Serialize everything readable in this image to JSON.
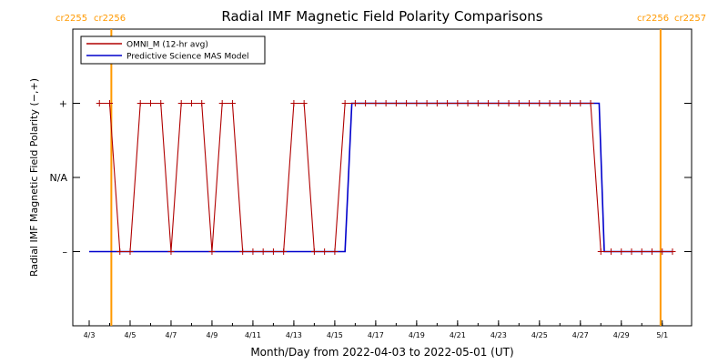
{
  "chart_data": {
    "type": "line",
    "title": "Radial IMF Magnetic Field Polarity Comparisons",
    "xlabel": "Month/Day from 2022-04-03 to 2022-05-01 (UT)",
    "ylabel": "Radial IMF Magnetic Field Polarity (−,+)",
    "x_unit": "date",
    "xlim": [
      "2022-04-03T00:00",
      "2022-05-01T12:00"
    ],
    "x_ticks": [
      {
        "date": "2022-04-03",
        "label": "4/3"
      },
      {
        "date": "2022-04-05",
        "label": "4/5"
      },
      {
        "date": "2022-04-07",
        "label": "4/7"
      },
      {
        "date": "2022-04-09",
        "label": "4/9"
      },
      {
        "date": "2022-04-11",
        "label": "4/11"
      },
      {
        "date": "2022-04-13",
        "label": "4/13"
      },
      {
        "date": "2022-04-15",
        "label": "4/15"
      },
      {
        "date": "2022-04-17",
        "label": "4/17"
      },
      {
        "date": "2022-04-19",
        "label": "4/19"
      },
      {
        "date": "2022-04-21",
        "label": "4/21"
      },
      {
        "date": "2022-04-23",
        "label": "4/23"
      },
      {
        "date": "2022-04-25",
        "label": "4/25"
      },
      {
        "date": "2022-04-27",
        "label": "4/27"
      },
      {
        "date": "2022-04-29",
        "label": "4/29"
      },
      {
        "date": "2022-05-01",
        "label": "5/1"
      }
    ],
    "ylim": [
      -2,
      2
    ],
    "y_ticks": [
      {
        "value": 1,
        "label": "+"
      },
      {
        "value": 0,
        "label": "N/A"
      },
      {
        "value": -1,
        "label": "–"
      }
    ],
    "grid": false,
    "legend_position": "top-left",
    "series": [
      {
        "name": "OMNI_M (12-hr avg)",
        "color": "#b00000",
        "marker": "+",
        "points": [
          [
            "2022-04-03T12:00",
            1
          ],
          [
            "2022-04-04T00:00",
            1
          ],
          [
            "2022-04-04T12:00",
            -1
          ],
          [
            "2022-04-05T00:00",
            -1
          ],
          [
            "2022-04-05T12:00",
            1
          ],
          [
            "2022-04-06T00:00",
            1
          ],
          [
            "2022-04-06T12:00",
            1
          ],
          [
            "2022-04-07T00:00",
            -1
          ],
          [
            "2022-04-07T12:00",
            1
          ],
          [
            "2022-04-08T00:00",
            1
          ],
          [
            "2022-04-08T12:00",
            1
          ],
          [
            "2022-04-09T00:00",
            -1
          ],
          [
            "2022-04-09T12:00",
            1
          ],
          [
            "2022-04-10T00:00",
            1
          ],
          [
            "2022-04-10T12:00",
            -1
          ],
          [
            "2022-04-11T00:00",
            -1
          ],
          [
            "2022-04-11T12:00",
            -1
          ],
          [
            "2022-04-12T00:00",
            -1
          ],
          [
            "2022-04-12T12:00",
            -1
          ],
          [
            "2022-04-13T00:00",
            1
          ],
          [
            "2022-04-13T12:00",
            1
          ],
          [
            "2022-04-14T00:00",
            -1
          ],
          [
            "2022-04-14T12:00",
            -1
          ],
          [
            "2022-04-15T00:00",
            -1
          ],
          [
            "2022-04-15T12:00",
            1
          ],
          [
            "2022-04-16T00:00",
            1
          ],
          [
            "2022-04-16T12:00",
            1
          ],
          [
            "2022-04-17T00:00",
            1
          ],
          [
            "2022-04-17T12:00",
            1
          ],
          [
            "2022-04-18T00:00",
            1
          ],
          [
            "2022-04-18T12:00",
            1
          ],
          [
            "2022-04-19T00:00",
            1
          ],
          [
            "2022-04-19T12:00",
            1
          ],
          [
            "2022-04-20T00:00",
            1
          ],
          [
            "2022-04-20T12:00",
            1
          ],
          [
            "2022-04-21T00:00",
            1
          ],
          [
            "2022-04-21T12:00",
            1
          ],
          [
            "2022-04-22T00:00",
            1
          ],
          [
            "2022-04-22T12:00",
            1
          ],
          [
            "2022-04-23T00:00",
            1
          ],
          [
            "2022-04-23T12:00",
            1
          ],
          [
            "2022-04-24T00:00",
            1
          ],
          [
            "2022-04-24T12:00",
            1
          ],
          [
            "2022-04-25T00:00",
            1
          ],
          [
            "2022-04-25T12:00",
            1
          ],
          [
            "2022-04-26T00:00",
            1
          ],
          [
            "2022-04-26T12:00",
            1
          ],
          [
            "2022-04-27T00:00",
            1
          ],
          [
            "2022-04-27T12:00",
            1
          ],
          [
            "2022-04-28T00:00",
            -1
          ],
          [
            "2022-04-28T12:00",
            -1
          ],
          [
            "2022-04-29T00:00",
            -1
          ],
          [
            "2022-04-29T12:00",
            -1
          ],
          [
            "2022-04-30T00:00",
            -1
          ],
          [
            "2022-04-30T12:00",
            -1
          ],
          [
            "2022-05-01T00:00",
            -1
          ],
          [
            "2022-05-01T12:00",
            -1
          ]
        ]
      },
      {
        "name": "Predictive Science MAS Model",
        "color": "#0000cc",
        "points": [
          [
            "2022-04-03T00:00",
            -1
          ],
          [
            "2022-04-15T12:00",
            -1
          ],
          [
            "2022-04-15T20:00",
            1
          ],
          [
            "2022-04-27T22:00",
            1
          ],
          [
            "2022-04-28T04:00",
            -1
          ],
          [
            "2022-05-01T12:00",
            -1
          ]
        ]
      }
    ],
    "annotations": [
      {
        "text": "cr2255",
        "color": "#ff9900"
      },
      {
        "text": "cr2256",
        "color": "#ff9900"
      },
      {
        "text": "cr2256",
        "color": "#ff9900"
      },
      {
        "text": "cr2257",
        "color": "#ff9900"
      }
    ],
    "vertical_markers": [
      {
        "date": "2022-04-04T02:00",
        "color": "#ff9900"
      },
      {
        "date": "2022-04-30T22:00",
        "color": "#ff9900"
      }
    ]
  }
}
